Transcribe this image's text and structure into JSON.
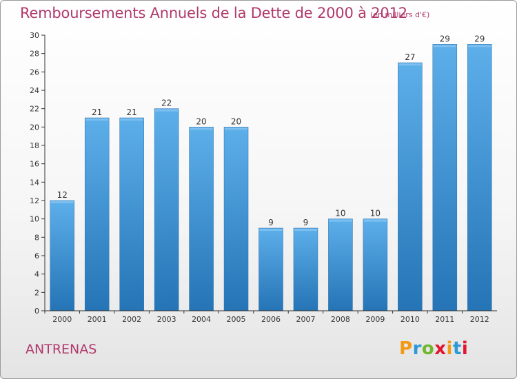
{
  "header": {
    "title": "Remboursements Annuels de la Dette de 2000 à 2012",
    "subtitle": "(en milliers d'€)"
  },
  "footer": {
    "city": "ANTRENAS",
    "logo": "Proxiti"
  },
  "colors": {
    "title": "#b03a6a",
    "bar_top": "#5dafea",
    "bar_bottom": "#2574b6",
    "axis": "#333333",
    "grid": "#d9d9d9",
    "logo_letters": [
      "#f29a17",
      "#2b9ad8",
      "#71b62f",
      "#e3162f",
      "#f29a17",
      "#2b9ad8",
      "#e3162f"
    ]
  },
  "chart_data": {
    "type": "bar",
    "categories": [
      "2000",
      "2001",
      "2002",
      "2003",
      "2004",
      "2005",
      "2006",
      "2007",
      "2008",
      "2009",
      "2010",
      "2011",
      "2012"
    ],
    "values": [
      12,
      21,
      21,
      22,
      20,
      20,
      9,
      9,
      10,
      10,
      27,
      29,
      29
    ],
    "data_labels": [
      "12",
      "21",
      "21",
      "22",
      "20",
      "20",
      "9",
      "9",
      "10",
      "10",
      "27",
      "29",
      "29"
    ],
    "title": "Remboursements Annuels de la Dette de 2000 à 2012",
    "xlabel": "",
    "ylabel": "",
    "ylim": [
      0,
      30
    ],
    "yticks": [
      0,
      2,
      4,
      6,
      8,
      10,
      12,
      14,
      16,
      18,
      20,
      22,
      24,
      26,
      28,
      30
    ],
    "grid": false,
    "legend": "none"
  }
}
